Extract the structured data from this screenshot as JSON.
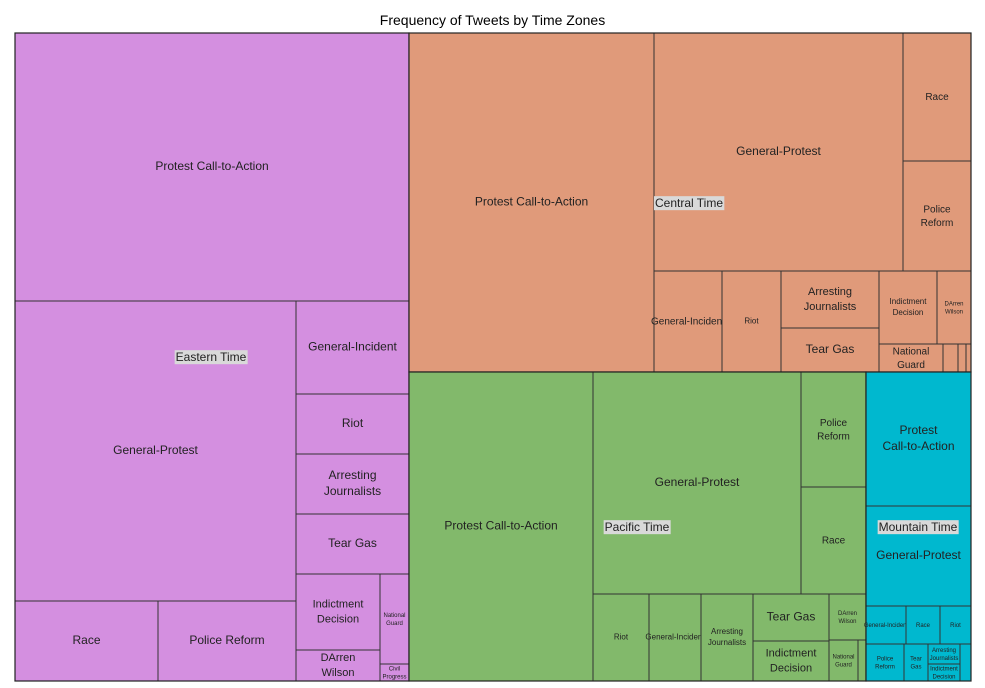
{
  "chart_data": {
    "type": "treemap",
    "title": "Frequency of Tweets by Time Zones",
    "groups": [
      {
        "name": "Eastern Time",
        "color": "#d48fe0",
        "children": [
          {
            "label": "Protest Call-to-Action",
            "value": 105000
          },
          {
            "label": "General-Protest",
            "value": 88000
          },
          {
            "label": "General-Incident",
            "value": 10500
          },
          {
            "label": "Riot",
            "value": 6600
          },
          {
            "label": "Arresting Journalists",
            "value": 6600
          },
          {
            "label": "Tear Gas",
            "value": 6600
          },
          {
            "label": "Race",
            "value": 11500
          },
          {
            "label": "Police Reform",
            "value": 11900
          },
          {
            "label": "Indictment Decision",
            "value": 6000
          },
          {
            "label": "DArren Wilson",
            "value": 2700
          },
          {
            "label": "National Guard",
            "value": 2600
          },
          {
            "label": "Civil Progress",
            "value": 430
          }
        ]
      },
      {
        "name": "Central Time",
        "color": "#e09a7a",
        "children": [
          {
            "label": "Protest Call-to-Action",
            "value": 82500
          },
          {
            "label": "General-Protest",
            "value": 59000
          },
          {
            "label": "Race",
            "value": 8500
          },
          {
            "label": "Police Reform",
            "value": 7300
          },
          {
            "label": "General-Incident",
            "value": 5700
          },
          {
            "label": "Riot",
            "value": 4900
          },
          {
            "label": "Arresting Journalists",
            "value": 4900
          },
          {
            "label": "Tear Gas",
            "value": 3700
          },
          {
            "label": "Indictment Decision",
            "value": 4300
          },
          {
            "label": "DArren Wilson",
            "value": 2600
          },
          {
            "label": "National Guard",
            "value": 1700
          },
          {
            "label": "",
            "value": 450
          },
          {
            "label": "",
            "value": 450
          },
          {
            "label": "",
            "value": 450
          }
        ]
      },
      {
        "name": "Pacific Time",
        "color": "#82b96b",
        "children": [
          {
            "label": "Protest Call-to-Action",
            "value": 56000
          },
          {
            "label": "General-Protest",
            "value": 45500
          },
          {
            "label": "Police Reform",
            "value": 7300
          },
          {
            "label": "Race",
            "value": 6900
          },
          {
            "label": "Riot",
            "value": 4800
          },
          {
            "label": "General-Incident",
            "value": 4500
          },
          {
            "label": "Arresting Journalists",
            "value": 4500
          },
          {
            "label": "Tear Gas",
            "value": 3000
          },
          {
            "label": "Indictment Decision",
            "value": 3200
          },
          {
            "label": "DArren Wilson",
            "value": 1500
          },
          {
            "label": "National Guard",
            "value": 1200
          },
          {
            "label": "",
            "value": 250
          }
        ]
      },
      {
        "name": "Mountain Time",
        "color": "#00b8cf",
        "children": [
          {
            "label": "Protest Call-to-Action",
            "value": 13000
          },
          {
            "label": "General-Protest",
            "value": 9800
          },
          {
            "label": "General-Incident",
            "value": 1500
          },
          {
            "label": "Race",
            "value": 1400
          },
          {
            "label": "Riot",
            "value": 1100
          },
          {
            "label": "Police Reform",
            "value": 1600
          },
          {
            "label": "Tear Gas",
            "value": 880
          },
          {
            "label": "Arresting Journalists",
            "value": 600
          },
          {
            "label": "Indictment Decision",
            "value": 600
          },
          {
            "label": "",
            "value": 300
          }
        ]
      }
    ]
  }
}
